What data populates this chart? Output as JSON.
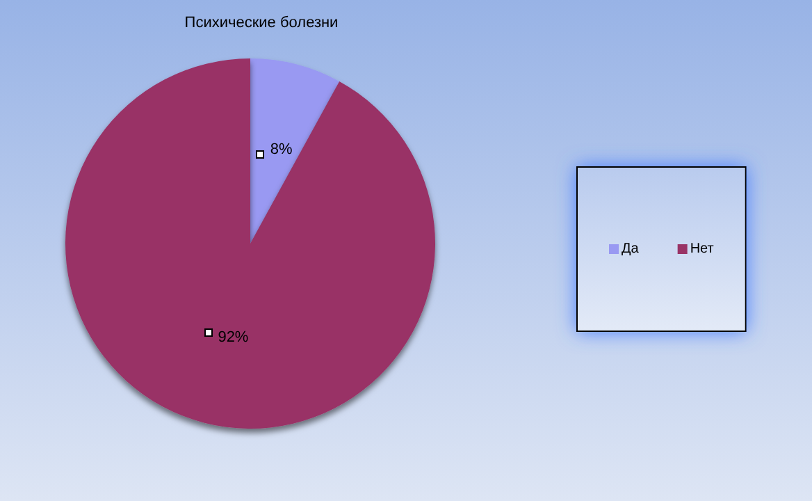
{
  "chart_data": {
    "type": "pie",
    "title": "Психические болезни",
    "categories": [
      "Да",
      "Нет"
    ],
    "values": [
      8,
      92
    ],
    "colors": [
      "#9999f2",
      "#993366"
    ],
    "value_labels": [
      "8%",
      "92%"
    ],
    "legend": "right"
  }
}
